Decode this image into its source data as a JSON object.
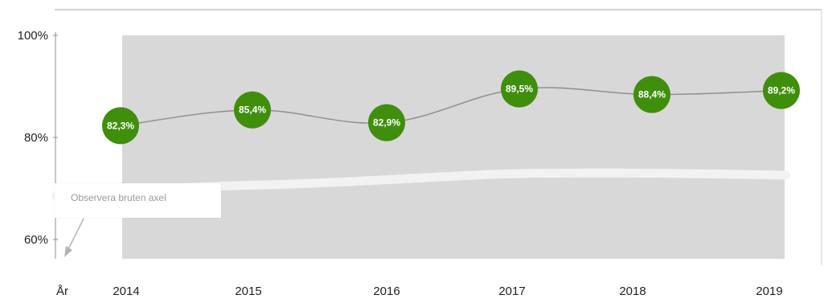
{
  "chart_data": {
    "type": "line",
    "x_axis_label": "År",
    "categories": [
      "2014",
      "2015",
      "2016",
      "2017",
      "2018",
      "2019"
    ],
    "series": [
      {
        "values": [
          82.3,
          85.4,
          82.9,
          89.5,
          88.4,
          89.2
        ]
      }
    ],
    "data_labels": [
      "82,3%",
      "85,4%",
      "82,9%",
      "89,5%",
      "88,4%",
      "89,2%"
    ],
    "y_ticks": [
      {
        "value": 60,
        "label": "60%"
      },
      {
        "value": 80,
        "label": "80%"
      },
      {
        "value": 100,
        "label": "100%"
      }
    ],
    "ylim": [
      56,
      100
    ],
    "broken_axis": true,
    "annotation": "Observera bruten axel",
    "grid": false,
    "legend": "none"
  },
  "colors": {
    "plot_area": "#d8d8d8",
    "marker": "#3f8f0d",
    "line": "#8f8f8f",
    "break_band": "#f2f2f2",
    "note_text": "#9a9a9a"
  }
}
